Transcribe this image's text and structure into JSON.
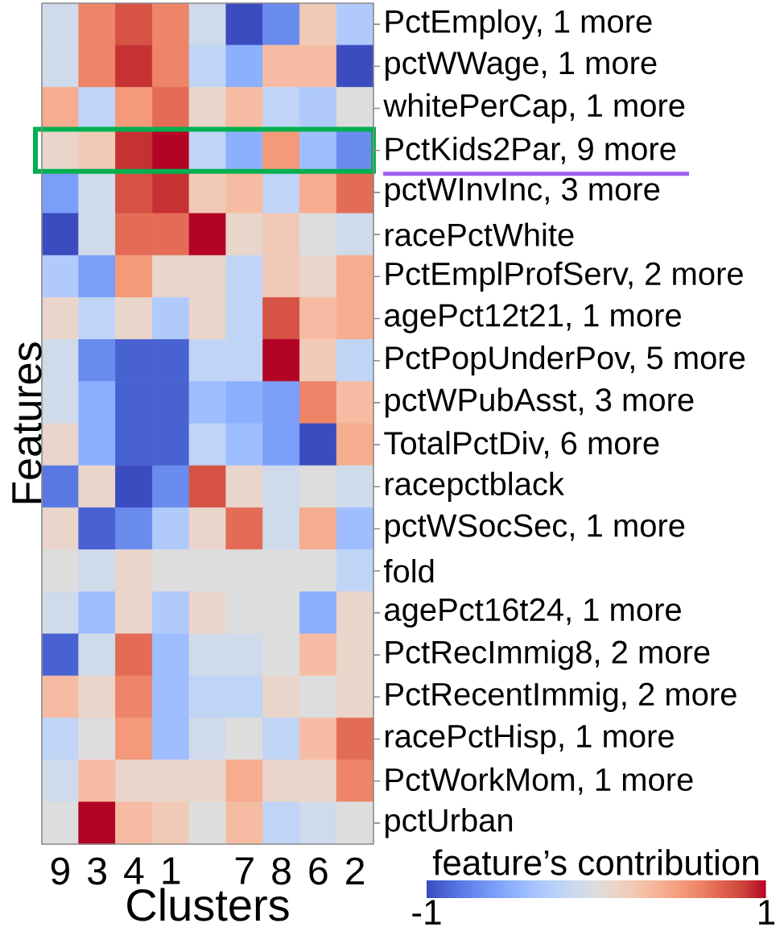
{
  "chart_data": {
    "type": "heatmap",
    "xlabel": "Clusters",
    "ylabel": "Features",
    "clabel": "feature’s contribution",
    "categories": [
      "9",
      "3",
      "4",
      "1",
      null,
      "7",
      "8",
      "6",
      "2"
    ],
    "y_categories": [
      "PctEmploy, 1 more",
      "pctWWage, 1 more",
      "whitePerCap, 1 more",
      "PctKids2Par, 9 more",
      "pctWInvInc, 3 more",
      "racePctWhite",
      "PctEmplProfServ, 2 more",
      "agePct12t21, 1 more",
      "PctPopUnderPov, 5 more",
      "pctWPubAsst, 3 more",
      "TotalPctDiv, 6 more",
      "racepctblack",
      "pctWSocSec, 1 more",
      "fold",
      "agePct16t24, 1 more",
      "PctRecImmig8, 2 more",
      "PctRecentImmig, 2 more",
      "racePctHisp, 1 more",
      "PctWorkMom, 1 more",
      "pctUrban"
    ],
    "cells": [
      [
        -0.1,
        0.6,
        0.8,
        0.6,
        -0.1,
        -1.0,
        -0.7,
        0.2,
        -0.3
      ],
      [
        -0.1,
        0.6,
        0.9,
        0.6,
        -0.2,
        -0.5,
        0.3,
        0.3,
        -1.0
      ],
      [
        0.4,
        -0.2,
        0.5,
        0.7,
        0.1,
        0.3,
        -0.2,
        -0.3,
        0.0
      ],
      [
        0.1,
        0.2,
        0.9,
        1.0,
        -0.2,
        -0.5,
        0.5,
        -0.4,
        -0.7
      ],
      [
        -0.6,
        -0.1,
        0.8,
        0.9,
        0.2,
        0.3,
        -0.2,
        0.4,
        0.7
      ],
      [
        -1.0,
        -0.1,
        0.7,
        0.7,
        1.0,
        0.1,
        0.2,
        0.0,
        -0.1
      ],
      [
        -0.3,
        -0.6,
        0.5,
        0.1,
        0.1,
        -0.2,
        0.2,
        0.1,
        0.4
      ],
      [
        0.1,
        -0.2,
        0.1,
        -0.3,
        0.1,
        -0.2,
        0.8,
        0.3,
        0.4
      ],
      [
        -0.1,
        -0.7,
        -0.9,
        -0.9,
        -0.2,
        -0.2,
        1.0,
        0.2,
        -0.2
      ],
      [
        -0.1,
        -0.5,
        -0.9,
        -0.9,
        -0.4,
        -0.5,
        -0.6,
        0.6,
        0.3
      ],
      [
        0.1,
        -0.5,
        -0.9,
        -0.9,
        -0.2,
        -0.4,
        -0.6,
        -1.0,
        0.4
      ],
      [
        -0.8,
        0.1,
        -1.0,
        -0.7,
        0.8,
        0.1,
        -0.1,
        0.0,
        -0.1
      ],
      [
        0.1,
        -0.9,
        -0.7,
        -0.3,
        0.1,
        0.7,
        -0.1,
        0.4,
        -0.4
      ],
      [
        0.0,
        -0.1,
        0.1,
        0.0,
        0.0,
        0.0,
        0.0,
        0.0,
        -0.2
      ],
      [
        -0.1,
        -0.4,
        0.1,
        -0.3,
        0.1,
        0.0,
        0.0,
        -0.5,
        0.1
      ],
      [
        -0.9,
        -0.1,
        0.7,
        -0.4,
        -0.1,
        -0.1,
        0.0,
        0.3,
        0.1
      ],
      [
        0.3,
        0.1,
        0.6,
        -0.4,
        -0.2,
        -0.2,
        0.1,
        0.0,
        0.1
      ],
      [
        -0.2,
        0.0,
        0.5,
        -0.4,
        -0.1,
        0.0,
        -0.2,
        0.3,
        0.7
      ],
      [
        -0.1,
        0.3,
        0.1,
        0.1,
        0.1,
        0.4,
        0.1,
        0.1,
        0.6
      ],
      [
        0.0,
        1.0,
        0.3,
        0.2,
        0.0,
        0.3,
        -0.2,
        -0.1,
        0.0
      ]
    ],
    "clim": [
      -1,
      1
    ],
    "cticks": [
      -1,
      1
    ]
  }
}
